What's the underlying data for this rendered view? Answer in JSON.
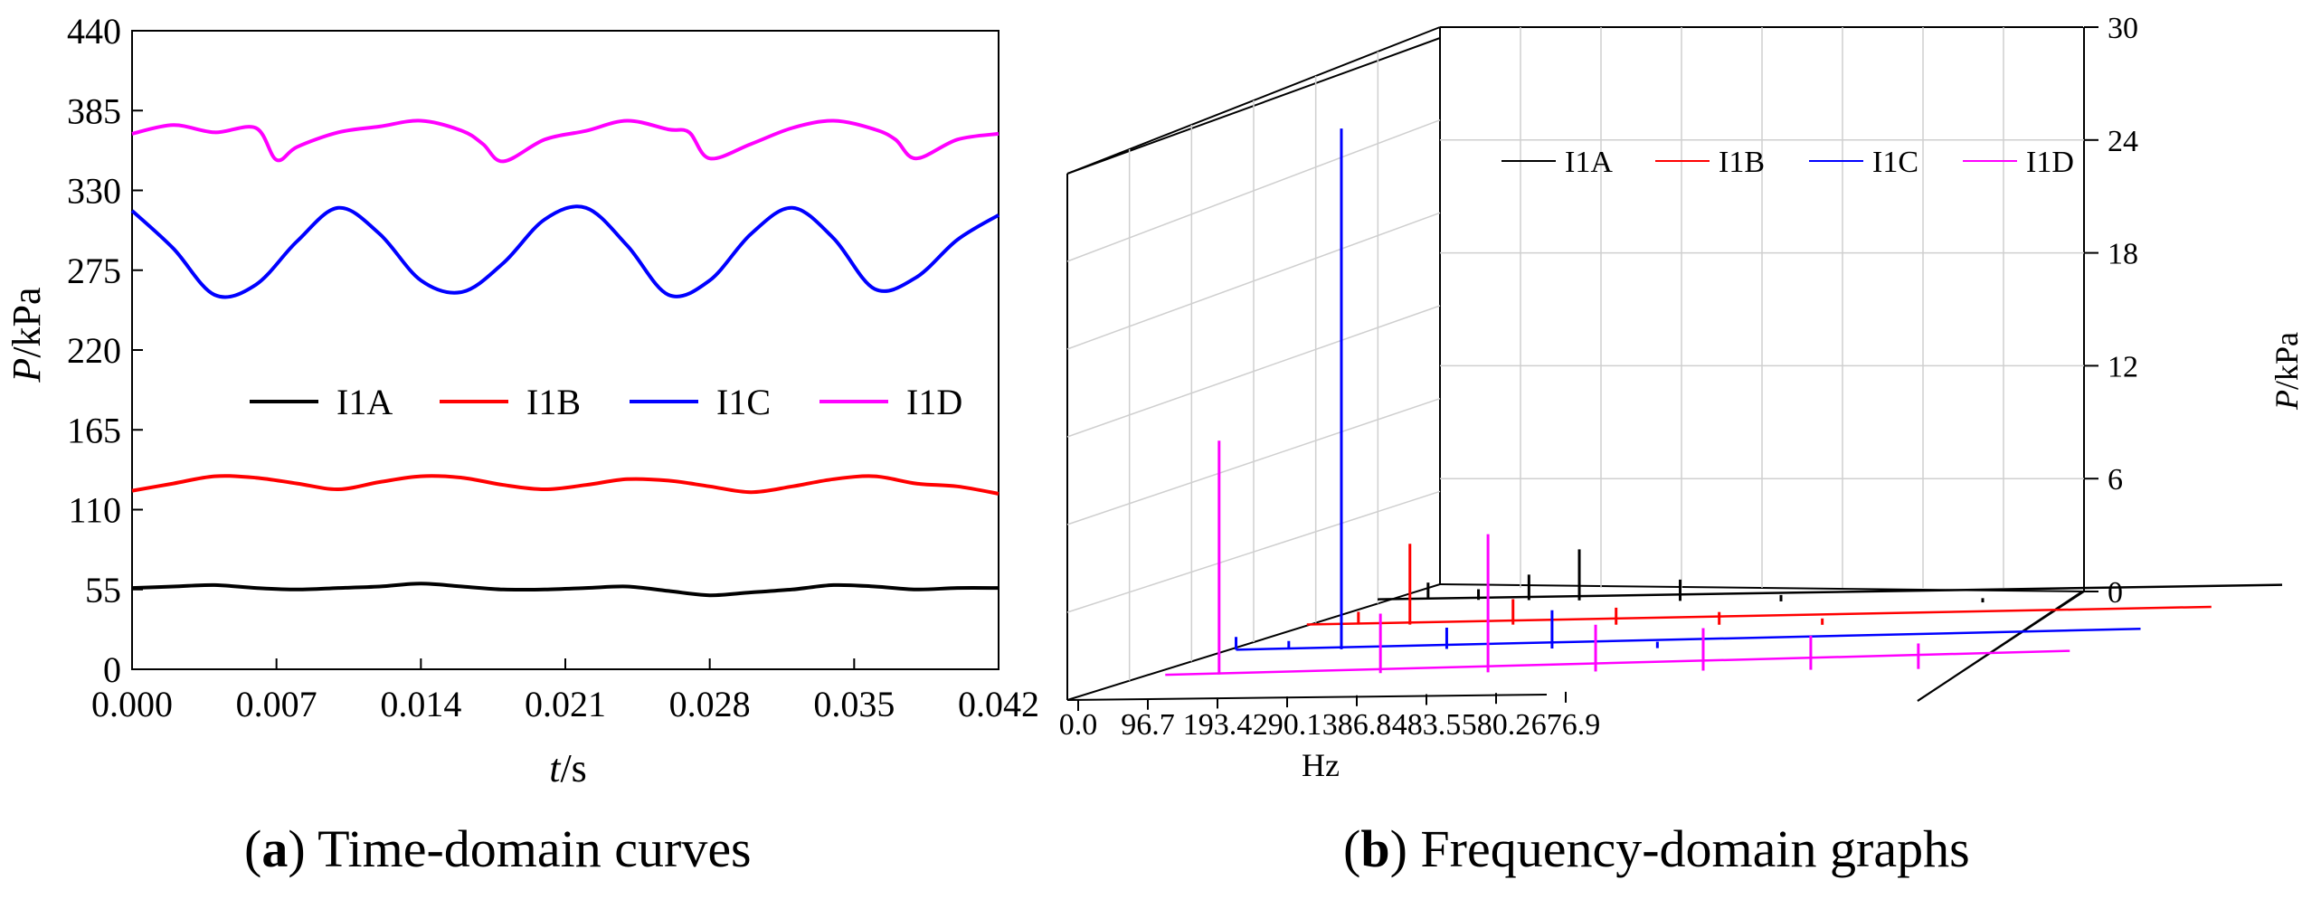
{
  "figure_a": {
    "caption_letter": "a",
    "caption_text": " Time-domain curves",
    "chart_data": {
      "type": "line",
      "xlabel_italic": "t",
      "xlabel_unit": "/s",
      "ylabel_italic": "P",
      "ylabel_unit": "/kPa",
      "xlim": [
        0,
        0.042
      ],
      "ylim": [
        0,
        440
      ],
      "x_ticks": [
        "0.000",
        "0.007",
        "0.014",
        "0.021",
        "0.028",
        "0.035",
        "0.042"
      ],
      "y_ticks": [
        "0",
        "55",
        "110",
        "165",
        "220",
        "275",
        "330",
        "385",
        "440"
      ],
      "legend": [
        "I1A",
        "I1B",
        "I1C",
        "I1D"
      ],
      "legend_position": "middle",
      "grid": false,
      "series": [
        {
          "name": "I1A",
          "color": "#000000",
          "x": [
            0,
            0.002,
            0.004,
            0.006,
            0.008,
            0.01,
            0.012,
            0.014,
            0.016,
            0.018,
            0.02,
            0.022,
            0.024,
            0.026,
            0.028,
            0.03,
            0.032,
            0.034,
            0.036,
            0.038,
            0.04,
            0.042
          ],
          "y": [
            56,
            57,
            58,
            56,
            55,
            56,
            57,
            59,
            57,
            55,
            55,
            56,
            57,
            54,
            51,
            53,
            55,
            58,
            57,
            55,
            56,
            56
          ]
        },
        {
          "name": "I1B",
          "color": "#ff0000",
          "x": [
            0,
            0.002,
            0.004,
            0.006,
            0.008,
            0.01,
            0.012,
            0.014,
            0.016,
            0.018,
            0.02,
            0.022,
            0.024,
            0.026,
            0.028,
            0.03,
            0.032,
            0.034,
            0.036,
            0.038,
            0.04,
            0.042
          ],
          "y": [
            123,
            128,
            133,
            132,
            128,
            124,
            129,
            133,
            132,
            127,
            124,
            127,
            131,
            130,
            126,
            122,
            126,
            131,
            133,
            128,
            126,
            121
          ]
        },
        {
          "name": "I1C",
          "color": "#0000ff",
          "x": [
            0,
            0.002,
            0.004,
            0.006,
            0.008,
            0.01,
            0.012,
            0.014,
            0.016,
            0.018,
            0.02,
            0.022,
            0.024,
            0.026,
            0.028,
            0.03,
            0.032,
            0.034,
            0.036,
            0.038,
            0.04,
            0.042
          ],
          "y": [
            316,
            290,
            258,
            265,
            295,
            318,
            300,
            268,
            260,
            280,
            310,
            318,
            292,
            258,
            268,
            300,
            318,
            297,
            262,
            270,
            296,
            313
          ]
        },
        {
          "name": "I1D",
          "color": "#ff00ff",
          "x": [
            0,
            0.002,
            0.004,
            0.006,
            0.007,
            0.008,
            0.01,
            0.012,
            0.014,
            0.016,
            0.017,
            0.018,
            0.02,
            0.022,
            0.024,
            0.026,
            0.027,
            0.028,
            0.03,
            0.032,
            0.034,
            0.036,
            0.037,
            0.038,
            0.04,
            0.042
          ],
          "y": [
            369,
            375,
            370,
            373,
            351,
            360,
            370,
            374,
            378,
            371,
            362,
            350,
            365,
            371,
            378,
            372,
            370,
            352,
            362,
            373,
            378,
            372,
            365,
            352,
            365,
            369
          ]
        }
      ]
    }
  },
  "figure_b": {
    "caption_letter": "b",
    "caption_text": " Frequency-domain graphs",
    "chart_data": {
      "type": "line",
      "projection": "3d-waterfall",
      "xlabel": "Hz",
      "zlabel_italic": "P",
      "zlabel_unit": "/kPa",
      "xlim": [
        0,
        676.9
      ],
      "zlim": [
        0,
        30
      ],
      "x_ticks": [
        "0.0",
        "96.7",
        "193.4",
        "290.1",
        "386.8",
        "483.5",
        "580.2",
        "676.9"
      ],
      "z_ticks": [
        "0",
        "6",
        "12",
        "18",
        "24",
        "30"
      ],
      "legend": [
        "I1A",
        "I1B",
        "I1C",
        "I1D"
      ],
      "legend_position": "top",
      "grid": true,
      "series": [
        {
          "name": "I1A",
          "color": "#000000",
          "peaks": [
            {
              "f": 48.4,
              "a": 0.8
            },
            {
              "f": 96.7,
              "a": 0.5
            },
            {
              "f": 145.1,
              "a": 1.2
            },
            {
              "f": 193.4,
              "a": 2.4
            },
            {
              "f": 290.1,
              "a": 1.0
            },
            {
              "f": 386.8,
              "a": 0.3
            },
            {
              "f": 580.2,
              "a": 0.2
            }
          ]
        },
        {
          "name": "I1B",
          "color": "#ff0000",
          "peaks": [
            {
              "f": 48.4,
              "a": 0.6
            },
            {
              "f": 96.7,
              "a": 3.8
            },
            {
              "f": 193.4,
              "a": 1.2
            },
            {
              "f": 290.1,
              "a": 0.8
            },
            {
              "f": 386.8,
              "a": 0.6
            },
            {
              "f": 483.5,
              "a": 0.3
            }
          ]
        },
        {
          "name": "I1C",
          "color": "#0000ff",
          "peaks": [
            {
              "f": 0,
              "a": 0.6
            },
            {
              "f": 48.4,
              "a": 0.4
            },
            {
              "f": 96.7,
              "a": 24.5
            },
            {
              "f": 193.4,
              "a": 1.0
            },
            {
              "f": 290.1,
              "a": 1.8
            },
            {
              "f": 386.8,
              "a": 0.3
            }
          ]
        },
        {
          "name": "I1D",
          "color": "#ff00ff",
          "peaks": [
            {
              "f": 48.4,
              "a": 11.0
            },
            {
              "f": 193.4,
              "a": 2.8
            },
            {
              "f": 290.1,
              "a": 6.5
            },
            {
              "f": 386.8,
              "a": 2.2
            },
            {
              "f": 483.5,
              "a": 2.0
            },
            {
              "f": 580.2,
              "a": 1.6
            },
            {
              "f": 676.9,
              "a": 1.2
            }
          ]
        }
      ]
    }
  }
}
